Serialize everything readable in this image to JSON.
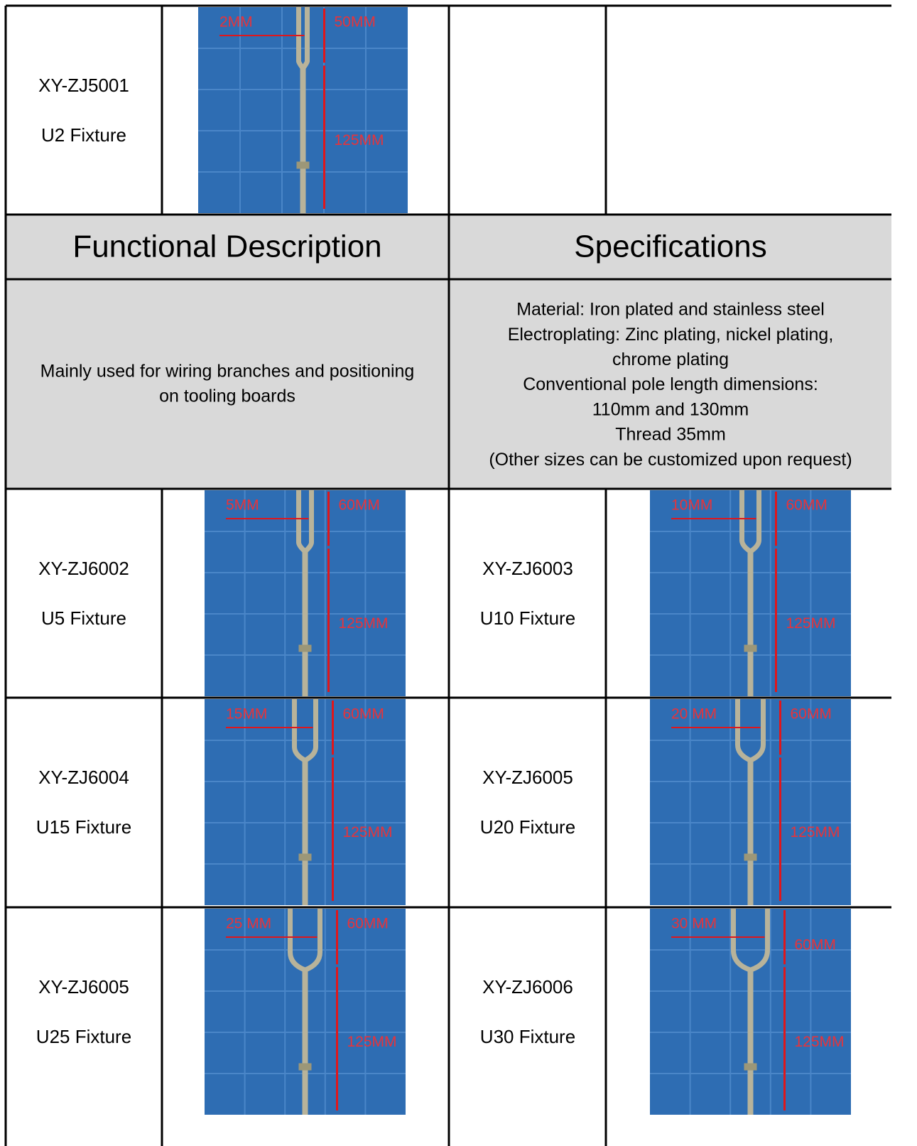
{
  "products": [
    {
      "code": "XY-ZJ5001",
      "name": "U2 Fixture",
      "dims": [
        "2MM",
        "50MM",
        "125MM"
      ]
    },
    {
      "code": "XY-ZJ6002",
      "name": "U5 Fixture",
      "dims": [
        "5MM",
        "60MM",
        "125MM"
      ]
    },
    {
      "code": "XY-ZJ6003",
      "name": "U10 Fixture",
      "dims": [
        "10MM",
        "60MM",
        "125MM"
      ]
    },
    {
      "code": "XY-ZJ6004",
      "name": "U15 Fixture",
      "dims": [
        "15MM",
        "60MM",
        "125MM"
      ]
    },
    {
      "code": "XY-ZJ6005",
      "name": "U20 Fixture",
      "dims": [
        "20 MM",
        "60MM",
        "125MM"
      ]
    },
    {
      "code": "XY-ZJ6005",
      "name": "U25 Fixture",
      "dims": [
        "25 MM",
        "60MM",
        "125MM"
      ]
    },
    {
      "code": "XY-ZJ6006",
      "name": "U30 Fixture",
      "dims": [
        "30 MM",
        "60MM",
        "125MM"
      ]
    }
  ],
  "header": {
    "functional": "Functional Description",
    "specifications": "Specifications"
  },
  "description": {
    "functional": [
      "Mainly used for wiring branches and positioning",
      "on tooling boards"
    ],
    "specifications": [
      "Material: Iron plated and stainless steel",
      "Electroplating: Zinc plating, nickel plating,",
      "chrome plating",
      "Conventional pole length dimensions:",
      "110mm and 130mm",
      "Thread 35mm",
      "(Other sizes can be customized upon request)"
    ]
  }
}
